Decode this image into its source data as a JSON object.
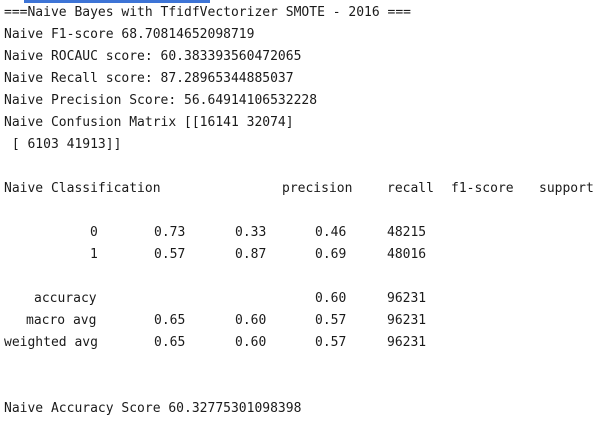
{
  "header": "===Naive Bayes with TfidfVectorizer SMOTE - 2016 ===",
  "f1": "Naive F1-score 68.70814652098719",
  "rocauc": "Naive ROCAUC score: 60.383393560472065",
  "recall": "Naive Recall score: 87.28965344885037",
  "precision": "Naive Precision Score: 56.64914106532228",
  "cm1": "Naive Confusion Matrix [[16141 32074]",
  "cm2": " [ 6103 41913]]",
  "report": {
    "title": "Naive Classification",
    "headers": [
      "precision",
      "recall",
      "f1-score",
      "support"
    ],
    "rows": [
      {
        "label": "0",
        "v1": "0.73",
        "v2": "0.33",
        "v3": "0.46",
        "v4": "48215"
      },
      {
        "label": "1",
        "v1": "0.57",
        "v2": "0.87",
        "v3": "0.69",
        "v4": "48016"
      },
      {
        "label": "accuracy",
        "v1": "",
        "v2": "",
        "v3": "0.60",
        "v4": "96231"
      },
      {
        "label": "macro avg",
        "v1": "0.65",
        "v2": "0.60",
        "v3": "0.57",
        "v4": "96231"
      },
      {
        "label": "weighted avg",
        "v1": "0.65",
        "v2": "0.60",
        "v3": "0.57",
        "v4": "96231"
      }
    ]
  },
  "accuracy_line": "Naive Accuracy Score 60.32775301098398"
}
